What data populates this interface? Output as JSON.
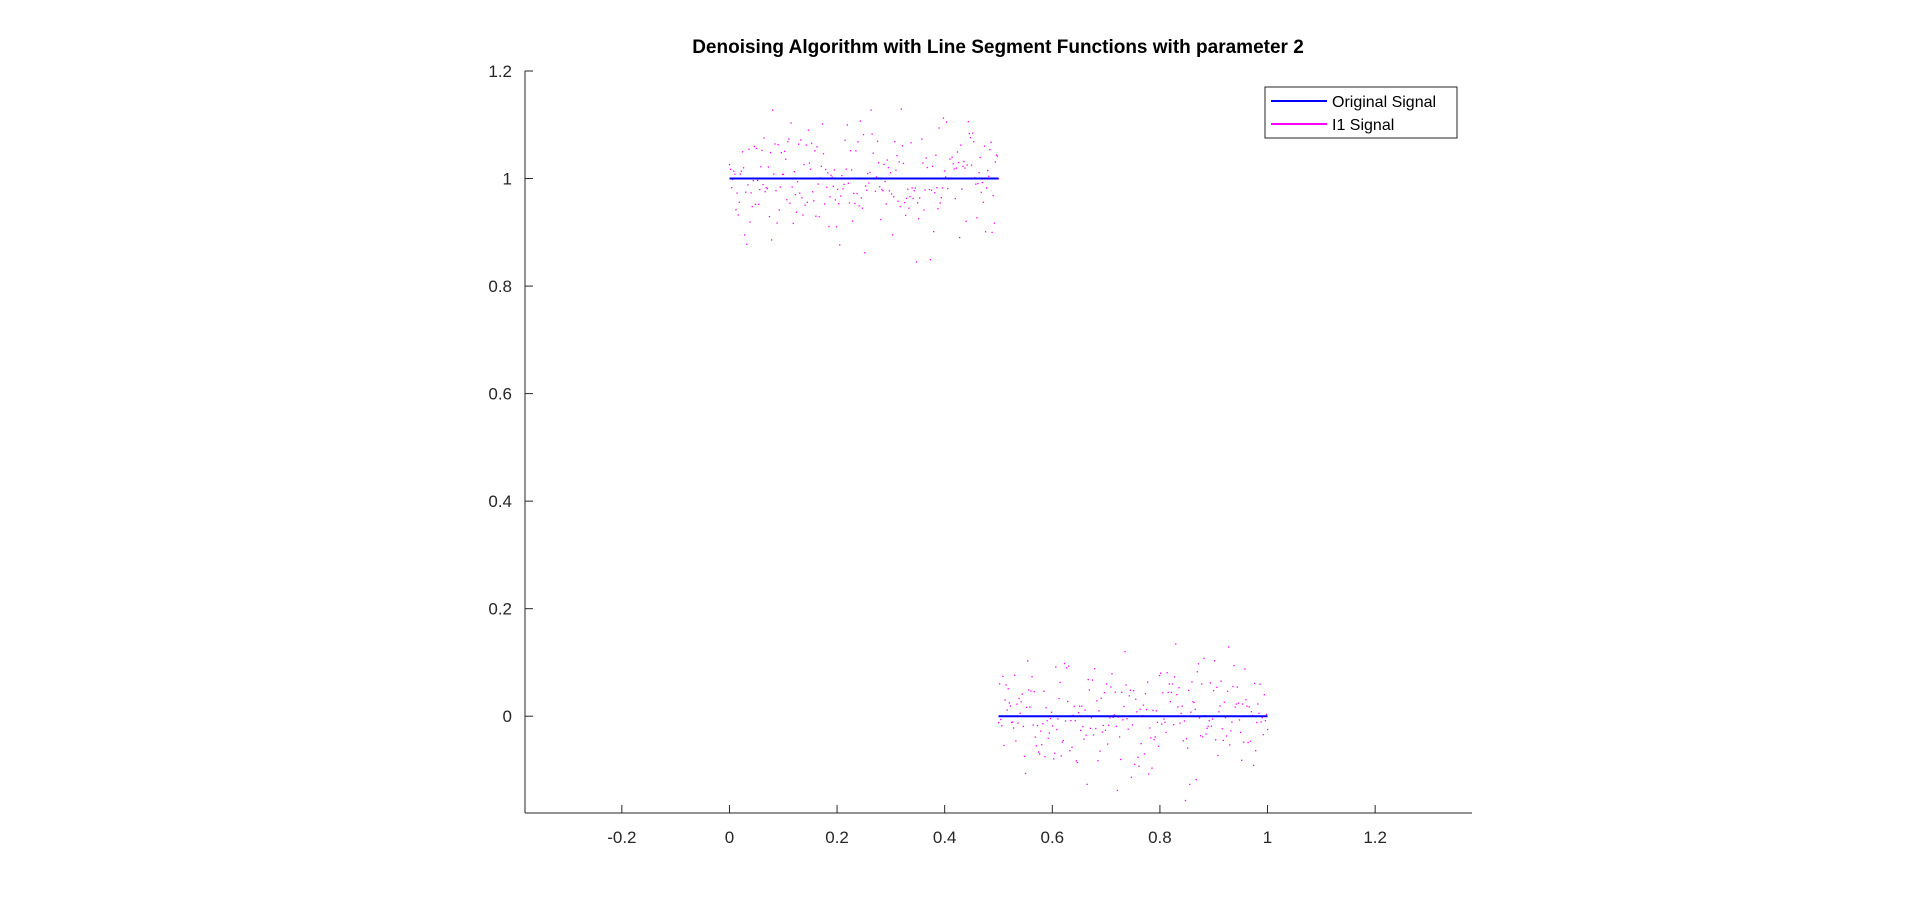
{
  "chart_data": {
    "type": "scatter",
    "title": "Denoising Algorithm with Line Segment Functions with parameter 2",
    "xlabel": "",
    "ylabel": "",
    "xlim": [
      -0.38,
      1.38
    ],
    "ylim": [
      -0.18,
      1.2
    ],
    "xticks": [
      -0.2,
      0,
      0.2,
      0.4,
      0.6,
      0.8,
      1,
      1.2
    ],
    "xtick_labels": [
      "-0.2",
      "0",
      "0.2",
      "0.4",
      "0.6",
      "0.8",
      "1",
      "1.2"
    ],
    "yticks": [
      0,
      0.2,
      0.4,
      0.6,
      0.8,
      1,
      1.2
    ],
    "ytick_labels": [
      "0",
      "0.2",
      "0.4",
      "0.6",
      "0.8",
      "1",
      "1.2"
    ],
    "grid": false,
    "legend_position": "top-right",
    "series": [
      {
        "name": "Original Signal",
        "style": "line",
        "color": "#0000ff",
        "segments": [
          {
            "x": [
              0,
              0.5
            ],
            "y": [
              1,
              1
            ]
          },
          {
            "x": [
              0.5,
              1
            ],
            "y": [
              0,
              0
            ]
          }
        ]
      },
      {
        "name": "I1 Signal",
        "style": "points",
        "color": "#ff00ff",
        "segments": [
          {
            "x_range": [
              0,
              0.5
            ],
            "center": 1,
            "y_range": [
              0.82,
              1.16
            ],
            "count": 250
          },
          {
            "x_range": [
              0.5,
              1
            ],
            "center": 0,
            "y_range": [
              -0.16,
              0.19
            ],
            "count": 250
          }
        ]
      }
    ]
  }
}
